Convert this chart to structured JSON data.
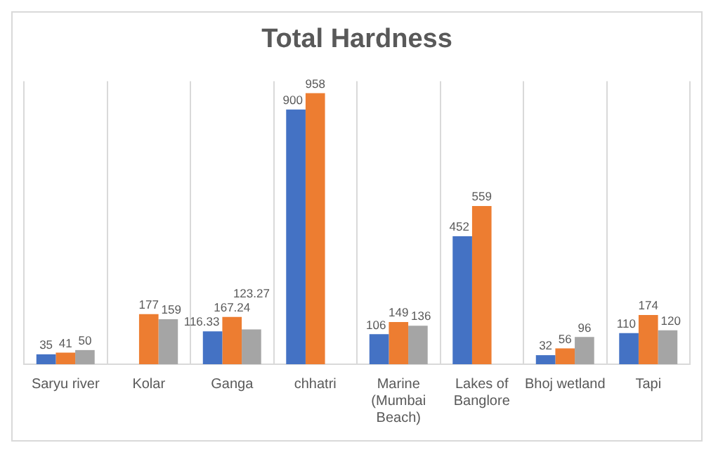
{
  "chart_data": {
    "type": "bar",
    "title": "Total Hardness",
    "categories": [
      "Saryu river",
      "Kolar",
      "Ganga",
      "chhatri",
      "Marine (Mumbai Beach)",
      "Lakes of Banglore",
      "Bhoj wetland",
      "Tapi"
    ],
    "series": [
      {
        "color": "#4472c4",
        "values": [
          35,
          null,
          116.33,
          900,
          106,
          452,
          32,
          110
        ]
      },
      {
        "color": "#ed7d31",
        "values": [
          41,
          177,
          167.24,
          958,
          149,
          559,
          56,
          174
        ]
      },
      {
        "color": "#a5a5a5",
        "values": [
          50,
          159,
          123.27,
          null,
          136,
          null,
          96,
          120
        ]
      }
    ],
    "data_labels": true,
    "grid": "x",
    "tick_labels": "x",
    "legend": false
  }
}
